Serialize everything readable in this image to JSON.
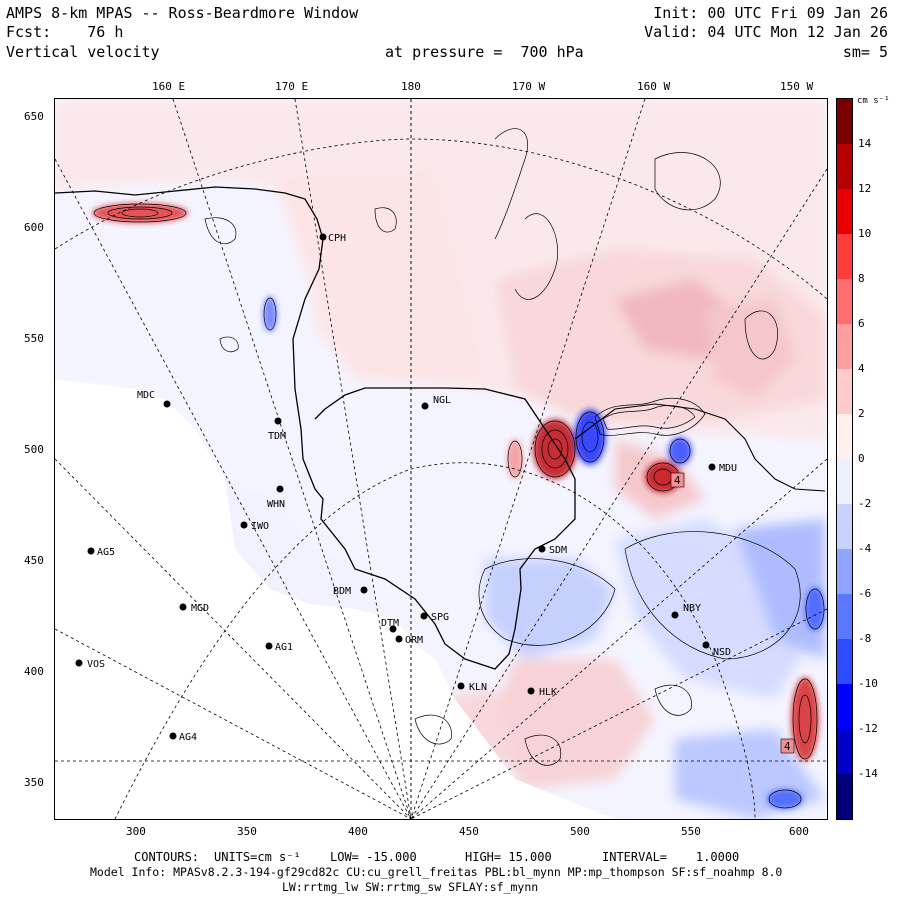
{
  "header": {
    "title": "AMPS 8-km MPAS -- Ross-Beardmore Window",
    "fcst": "Fcst:    76 h",
    "field": "Vertical velocity",
    "init": "Init: 00 UTC Fri 09 Jan 26",
    "valid": "Valid: 04 UTC Mon 12 Jan 26",
    "pressure": "at pressure =  700 hPa",
    "smoothing": "sm= 5"
  },
  "axes": {
    "x_ticks": [
      "300",
      "350",
      "400",
      "450",
      "500",
      "550",
      "600"
    ],
    "y_ticks": [
      "650",
      "600",
      "550",
      "500",
      "450",
      "400",
      "350"
    ],
    "lon_labels": [
      "160 E",
      "170 E",
      "180",
      "170 W",
      "160 W",
      "150 W"
    ]
  },
  "colorbar": {
    "unit": "cm s⁻¹",
    "labels": [
      "14",
      "12",
      "10",
      "8",
      "6",
      "4",
      "2",
      "0",
      "-2",
      "-4",
      "-6",
      "-8",
      "-10",
      "-12",
      "-14"
    ],
    "colors": [
      "#00007a",
      "#0000c8",
      "#0000ff",
      "#2e4cff",
      "#5a78ff",
      "#8ea4ff",
      "#c8d2ff",
      "#ecf0ff",
      "#fff0f0",
      "#ffcaca",
      "#ff9e9e",
      "#ff6e6e",
      "#ff3c3c",
      "#e80000",
      "#b40000",
      "#7a0000"
    ]
  },
  "stations": [
    {
      "name": "CPH"
    },
    {
      "name": "NGL"
    },
    {
      "name": "MDC"
    },
    {
      "name": "TDM"
    },
    {
      "name": "WHN"
    },
    {
      "name": "IWO"
    },
    {
      "name": "AG5"
    },
    {
      "name": "MGD"
    },
    {
      "name": "BDM"
    },
    {
      "name": "SPG"
    },
    {
      "name": "DTM"
    },
    {
      "name": "ORM"
    },
    {
      "name": "AG1"
    },
    {
      "name": "VOS"
    },
    {
      "name": "AG4"
    },
    {
      "name": "KLN"
    },
    {
      "name": "HLK"
    },
    {
      "name": "SDM"
    },
    {
      "name": "NBY"
    },
    {
      "name": "NSD"
    },
    {
      "name": "MDU"
    }
  ],
  "footer": {
    "contours_label": "CONTOURS:",
    "units_label": "UNITS=cm s⁻¹",
    "low": "LOW= -15.000",
    "high": "HIGH= 15.000",
    "interval": "INTERVAL=    1.0000",
    "model_info": "Model Info: MPASv8.2.3-194-gf29cd82c CU:cu_grell_freitas PBL:bl_mynn MP:mp_thompson SF:sf_noahmp 8.0",
    "model_info2": "LW:rrtmg_lw SW:rrtmg_sw SFLAY:sf_mynn"
  }
}
